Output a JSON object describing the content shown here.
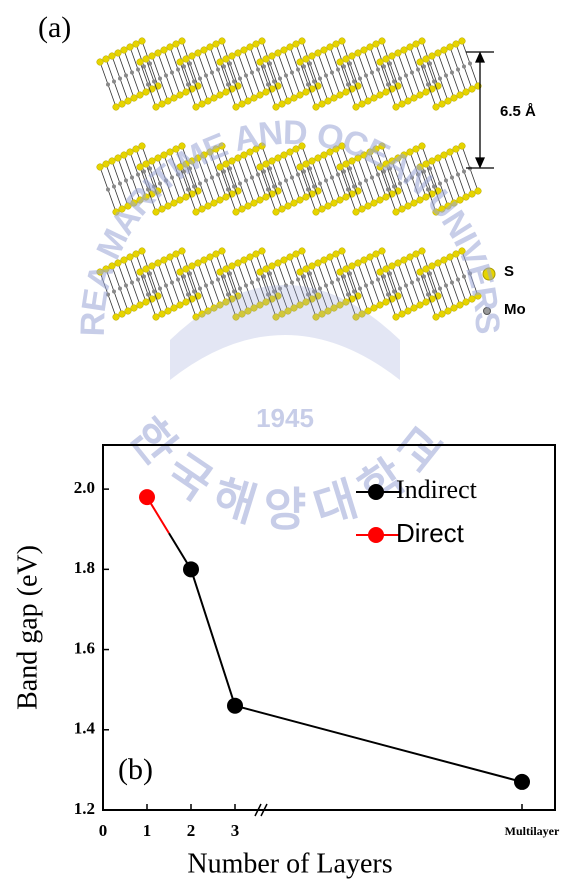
{
  "panel_a": {
    "label": "(a)",
    "spacing": "6.5 Å",
    "legend": [
      "S",
      "Mo"
    ]
  },
  "watermark": {
    "name": "KOREA MARITIME AND OCEAN UNIVERSITY",
    "year": "1945",
    "korean": "한국해양대학교"
  },
  "chart_data": {
    "type": "line",
    "annotation": "(b)",
    "xlabel": "Number of Layers",
    "ylabel": "Band gap (eV)",
    "categories": [
      "0",
      "1",
      "2",
      "3",
      "Multilayer"
    ],
    "series": [
      {
        "name": "Indirect",
        "color": "#000000",
        "values": [
          null,
          null,
          1.8,
          1.46,
          1.27
        ]
      },
      {
        "name": "Direct",
        "color": "#ff0000",
        "values": [
          null,
          1.98,
          null,
          null,
          null
        ]
      }
    ],
    "ylim": [
      1.2,
      2.11
    ],
    "yticks": [
      {
        "value": 1.2,
        "label": "1.2"
      },
      1.4,
      1.6,
      1.8,
      {
        "value": 2.0,
        "label": "2.0"
      }
    ],
    "legend": "upper right"
  }
}
